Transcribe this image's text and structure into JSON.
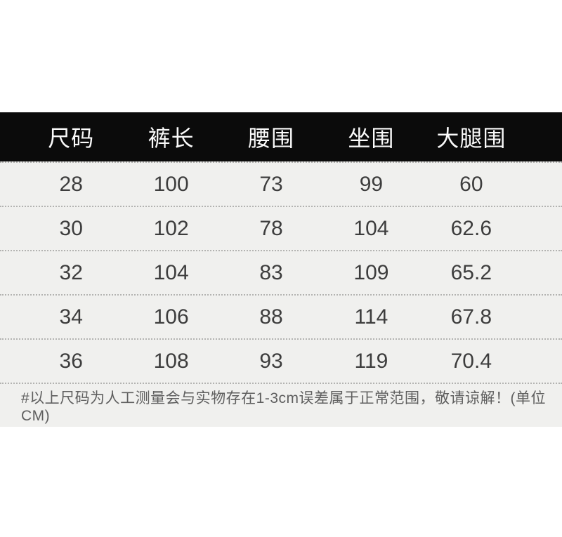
{
  "chart_data": {
    "type": "table",
    "columns": [
      "尺码",
      "裤长",
      "腰围",
      "坐围",
      "大腿围"
    ],
    "rows": [
      [
        "28",
        "100",
        "73",
        "99",
        "60"
      ],
      [
        "30",
        "102",
        "78",
        "104",
        "62.6"
      ],
      [
        "32",
        "104",
        "83",
        "109",
        "65.2"
      ],
      [
        "34",
        "106",
        "88",
        "114",
        "67.8"
      ],
      [
        "36",
        "108",
        "93",
        "119",
        "70.4"
      ]
    ],
    "note": "#以上尺码为人工测量会与实物存在1-3cm误差属于正常范围，敬请谅解！(单位CM)",
    "unit": "CM"
  },
  "colors": {
    "header-bg": "#0b0b0b",
    "header-text": "#fafafa",
    "panel-bg": "#f0f0ee",
    "cell-text": "#3d3d3d",
    "note-text": "#5f5f5f",
    "divider": "#b3b3b1",
    "page-bg": "#ffffff"
  }
}
